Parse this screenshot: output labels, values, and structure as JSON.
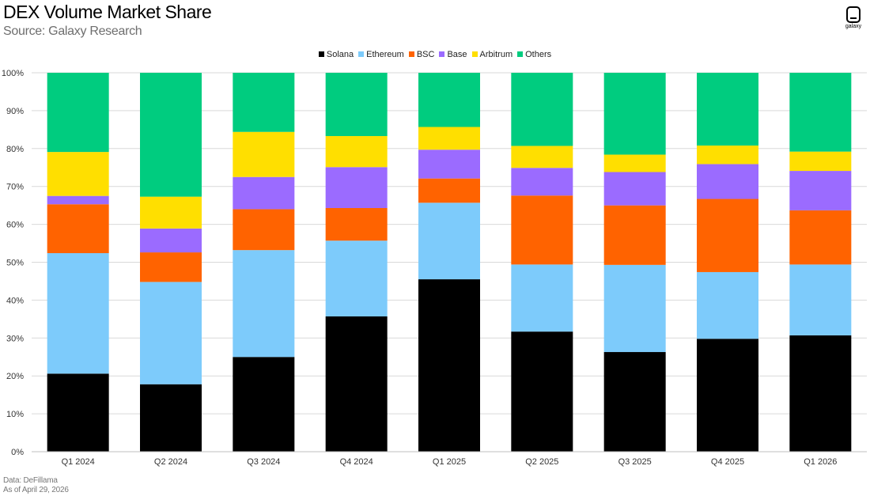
{
  "header": {
    "title": "DEX Volume Market Share",
    "subtitle": "Source: Galaxy Research",
    "logo_text": "galaxy"
  },
  "footer": {
    "line1": "Data: DeFillama",
    "line2": "As of April 29, 2026"
  },
  "colors": {
    "Solana": "#000000",
    "Ethereum": "#7dcbfb",
    "BSC": "#ff6300",
    "Base": "#9b6bff",
    "Arbitrum": "#ffdf00",
    "Others": "#00cc7f",
    "gridline": "#d9d9d9"
  },
  "chart_data": {
    "type": "bar",
    "stacked": true,
    "title": "DEX Volume Market Share",
    "subtitle": "Source: Galaxy Research",
    "xlabel": "",
    "ylabel": "",
    "ylim": [
      0,
      100
    ],
    "y_tick_values": [
      0,
      10,
      20,
      30,
      40,
      50,
      60,
      70,
      80,
      90,
      100
    ],
    "y_tick_labels": [
      "0%",
      "10%",
      "20%",
      "30%",
      "40%",
      "50%",
      "60%",
      "70%",
      "80%",
      "90%",
      "100%"
    ],
    "grid": true,
    "legend_position": "top-center",
    "categories": [
      "Q1 2024",
      "Q2 2024",
      "Q3 2024",
      "Q4 2024",
      "Q1 2025",
      "Q2 2025",
      "Q3 2025",
      "Q4 2025",
      "Q1 2026"
    ],
    "series": [
      {
        "name": "Solana",
        "values": [
          20.6,
          17.8,
          25.0,
          35.7,
          45.5,
          31.7,
          26.3,
          29.8,
          30.7
        ]
      },
      {
        "name": "Ethereum",
        "values": [
          31.8,
          27.0,
          28.2,
          20.0,
          20.2,
          17.7,
          23.0,
          17.6,
          18.7
        ]
      },
      {
        "name": "BSC",
        "values": [
          12.9,
          7.8,
          10.8,
          8.6,
          6.4,
          18.2,
          15.7,
          19.3,
          14.3
        ]
      },
      {
        "name": "Base",
        "values": [
          2.2,
          6.3,
          8.5,
          10.8,
          7.6,
          7.3,
          8.8,
          9.2,
          10.4
        ]
      },
      {
        "name": "Arbitrum",
        "values": [
          11.6,
          8.4,
          11.9,
          8.2,
          6.0,
          5.8,
          4.6,
          4.9,
          5.1
        ]
      },
      {
        "name": "Others",
        "values": [
          20.9,
          32.7,
          15.6,
          16.7,
          14.3,
          19.3,
          21.6,
          19.2,
          20.8
        ]
      }
    ]
  }
}
